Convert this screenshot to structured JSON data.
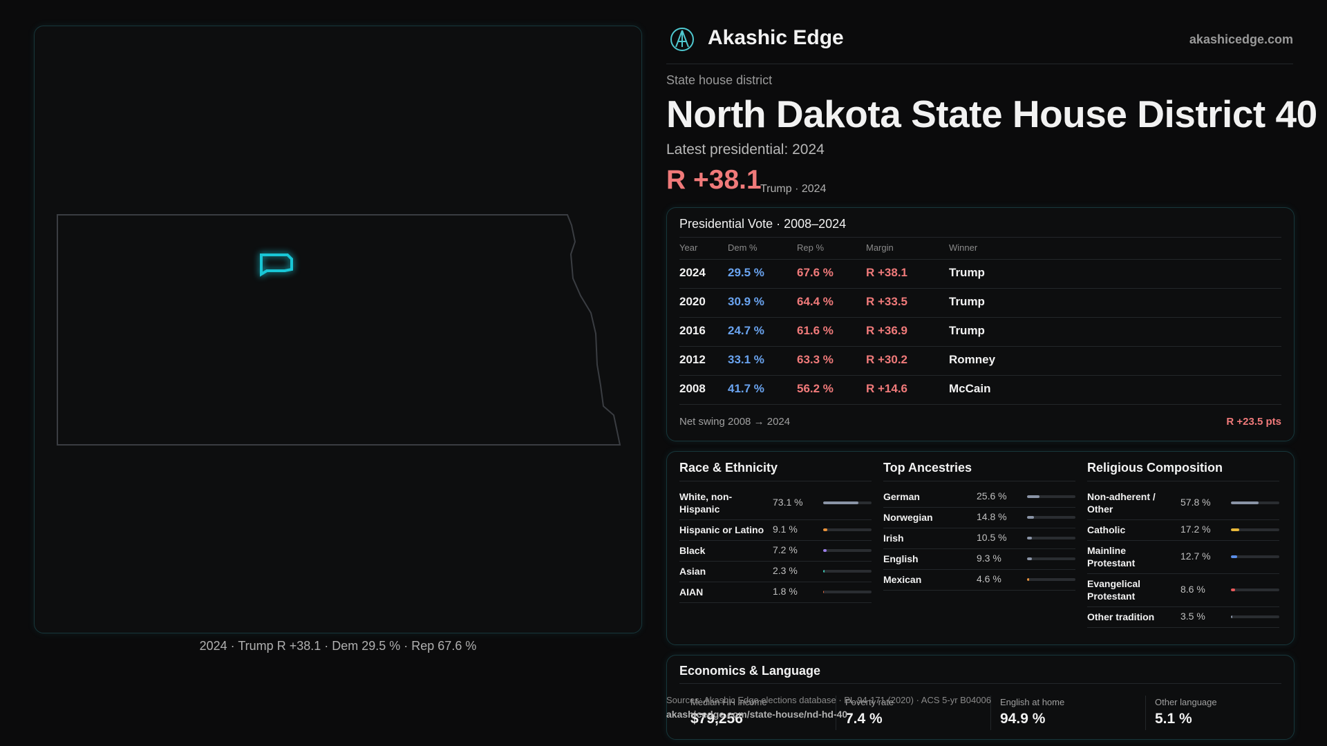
{
  "brand": {
    "name": "Akashic Edge",
    "url": "akashicedge.com"
  },
  "header": {
    "kicker": "State house district",
    "title": "North Dakota State House District 40",
    "latest": "Latest presidential: 2024",
    "margin": "R +38.1",
    "margin_note": "Trump · 2024"
  },
  "map": {
    "caption": "2024 · Trump R +38.1 · Dem 29.5 % · Rep 67.6 %"
  },
  "vote_table": {
    "title": "Presidential Vote · 2008–2024",
    "columns": [
      "Year",
      "Dem %",
      "Rep %",
      "Margin",
      "Winner"
    ],
    "rows": [
      [
        "2024",
        "29.5 %",
        "67.6 %",
        "R +38.1",
        "Trump"
      ],
      [
        "2020",
        "30.9 %",
        "64.4 %",
        "R +33.5",
        "Trump"
      ],
      [
        "2016",
        "24.7 %",
        "61.6 %",
        "R +36.9",
        "Trump"
      ],
      [
        "2012",
        "33.1 %",
        "63.3 %",
        "R +30.2",
        "Romney"
      ],
      [
        "2008",
        "41.7 %",
        "56.2 %",
        "R +14.6",
        "McCain"
      ]
    ],
    "swing_label": "Net swing 2008 → 2024",
    "swing_value": "R +23.5 pts"
  },
  "panels": [
    {
      "title": "Race & Ethnicity",
      "items": [
        {
          "label": "White, non-Hispanic",
          "value": 73.1,
          "value_label": "73.1 %",
          "color": "#8a94a6"
        },
        {
          "label": "Hispanic or Latino",
          "value": 9.1,
          "value_label": "9.1 %",
          "color": "#e8913a"
        },
        {
          "label": "Black",
          "value": 7.2,
          "value_label": "7.2 %",
          "color": "#9a7ee8"
        },
        {
          "label": "Asian",
          "value": 2.3,
          "value_label": "2.3 %",
          "color": "#3ac4b0"
        },
        {
          "label": "AIAN",
          "value": 1.8,
          "value_label": "1.8 %",
          "color": "#e8673a"
        }
      ]
    },
    {
      "title": "Top Ancestries",
      "items": [
        {
          "label": "German",
          "value": 25.6,
          "value_label": "25.6 %",
          "color": "#8a94a6"
        },
        {
          "label": "Norwegian",
          "value": 14.8,
          "value_label": "14.8 %",
          "color": "#8a94a6"
        },
        {
          "label": "Irish",
          "value": 10.5,
          "value_label": "10.5 %",
          "color": "#8a94a6"
        },
        {
          "label": "English",
          "value": 9.3,
          "value_label": "9.3 %",
          "color": "#8a94a6"
        },
        {
          "label": "Mexican",
          "value": 4.6,
          "value_label": "4.6 %",
          "color": "#e8913a"
        }
      ]
    },
    {
      "title": "Religious Composition",
      "items": [
        {
          "label": "Non-adherent / Other",
          "value": 57.8,
          "value_label": "57.8 %",
          "color": "#8a94a6"
        },
        {
          "label": "Catholic",
          "value": 17.2,
          "value_label": "17.2 %",
          "color": "#e8b83a"
        },
        {
          "label": "Mainline Protestant",
          "value": 12.7,
          "value_label": "12.7 %",
          "color": "#5a8ee8"
        },
        {
          "label": "Evangelical Protestant",
          "value": 8.6,
          "value_label": "8.6 %",
          "color": "#e85a5a"
        },
        {
          "label": "Other tradition",
          "value": 3.5,
          "value_label": "3.5 %",
          "color": "#8a94a6"
        }
      ]
    }
  ],
  "economics": {
    "title": "Economics & Language",
    "stats": [
      {
        "label": "Median HH income",
        "value": "$79,256"
      },
      {
        "label": "Poverty rate",
        "value": "7.4 %"
      },
      {
        "label": "English at home",
        "value": "94.9 %"
      },
      {
        "label": "Other language",
        "value": "5.1 %"
      }
    ]
  },
  "footer": {
    "sources": "Sources: Akashic Edge elections database · PL 94-171 (2020) · ACS 5-yr B04006",
    "link": "akashicedge.com/state-house/nd-hd-40"
  }
}
